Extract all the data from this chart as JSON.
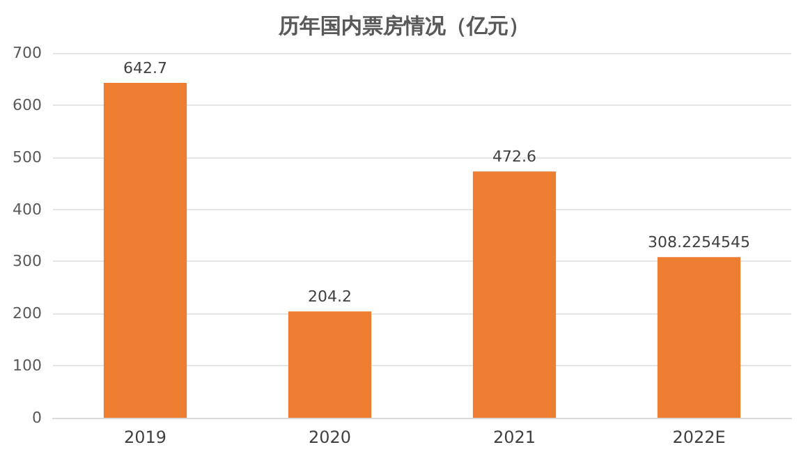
{
  "chart_data": {
    "type": "bar",
    "title": "历年国内票房情况（亿元）",
    "categories": [
      "2019",
      "2020",
      "2021",
      "2022E"
    ],
    "values": [
      642.7,
      204.2,
      472.6,
      308.2254545
    ],
    "color": "#ed7d31",
    "ylim": [
      0,
      700
    ],
    "yticks": [
      0,
      100,
      200,
      300,
      400,
      500,
      600,
      700
    ],
    "grid": "y",
    "data_labels": true
  }
}
